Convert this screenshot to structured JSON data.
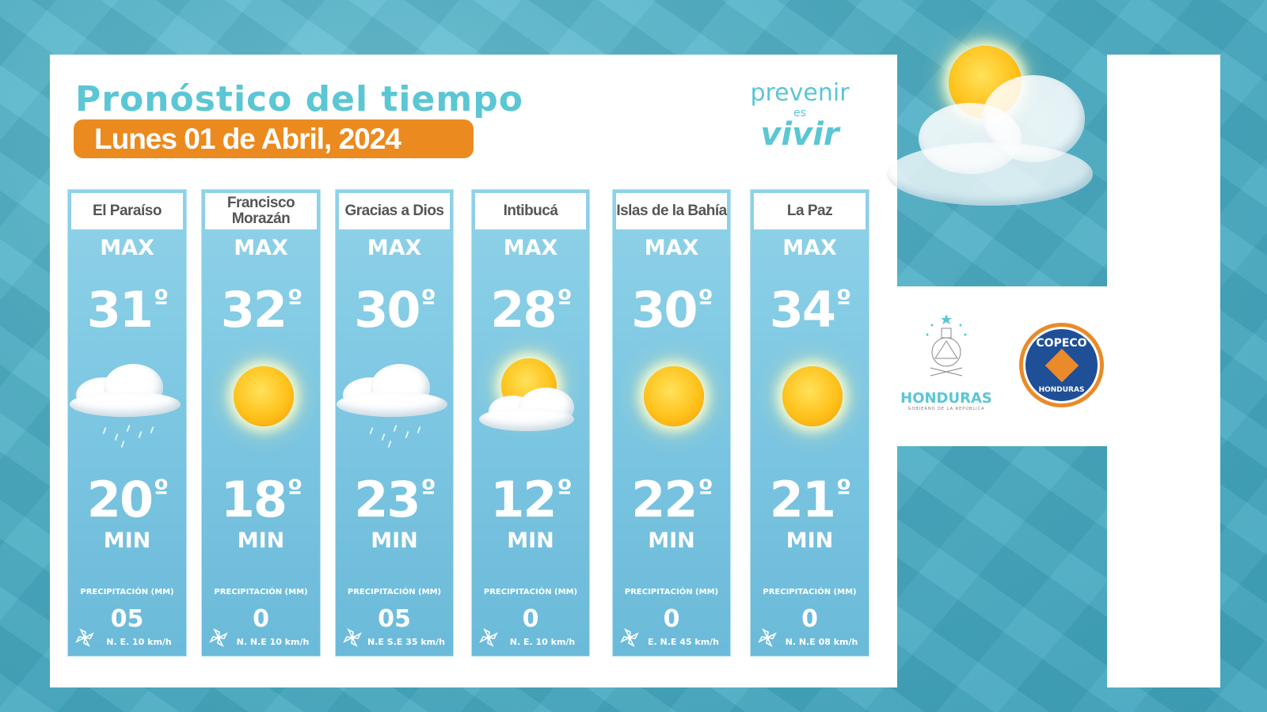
{
  "header": {
    "title": "Pronóstico del tiempo",
    "date": "Lunes 01 de Abril, 2024"
  },
  "brand": {
    "line1": "prevenir",
    "line2": "es",
    "line3": "vivir"
  },
  "labels": {
    "max": "MAX",
    "min": "MIN",
    "precip": "PRECIPITACIÓN (MM)",
    "degree": "º"
  },
  "colors": {
    "accent": "#5bc6d4",
    "badge": "#eb8a1e",
    "column": "#7cc6e2"
  },
  "departments": [
    {
      "name": "El Paraíso",
      "max": "31",
      "min": "20",
      "precip": "05",
      "wind": "N.  E. 10 km/h",
      "icon": "cloud-rain-icon"
    },
    {
      "name": "Francisco Morazán",
      "max": "32",
      "min": "18",
      "precip": "0",
      "wind": "N. N.E 10 km/h",
      "icon": "sun-icon"
    },
    {
      "name": "Gracias a Dios",
      "max": "30",
      "min": "23",
      "precip": "05",
      "wind": "N.E S.E 35 km/h",
      "icon": "cloud-rain-icon"
    },
    {
      "name": "Intibucá",
      "max": "28",
      "min": "12",
      "precip": "0",
      "wind": "N.  E. 10 km/h",
      "icon": "sun-cloud-icon"
    },
    {
      "name": "Islas de la Bahía",
      "max": "30",
      "min": "22",
      "precip": "0",
      "wind": "E. N.E 45 km/h",
      "icon": "sun-icon"
    },
    {
      "name": "La Paz",
      "max": "34",
      "min": "21",
      "precip": "0",
      "wind": "N. N.E 08 km/h",
      "icon": "sun-icon"
    }
  ],
  "logos": {
    "honduras": "HONDURAS",
    "honduras_sub": "GOBIERNO DE LA REPÚBLICA",
    "copeco": "COPECO",
    "copeco_sub": "HONDURAS"
  }
}
